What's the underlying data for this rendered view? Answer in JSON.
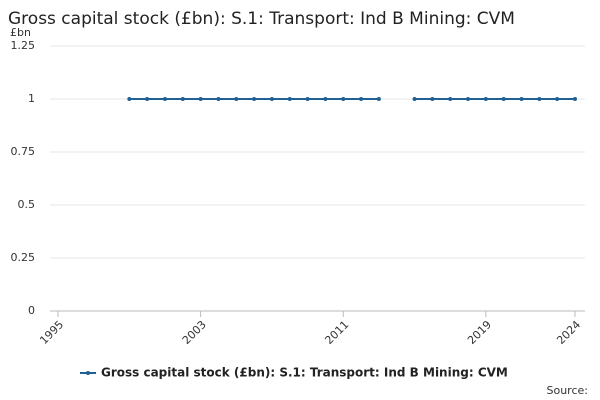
{
  "chart_data": {
    "type": "line",
    "title": "Gross capital stock (£bn): S.1: Transport: Ind B Mining: CVM",
    "y_unit": "£bn",
    "source": "Source:",
    "x": [
      1999,
      2000,
      2001,
      2002,
      2003,
      2004,
      2005,
      2006,
      2007,
      2008,
      2009,
      2010,
      2011,
      2012,
      2013,
      2014,
      2015,
      2016,
      2017,
      2018,
      2019,
      2020,
      2021,
      2022,
      2023,
      2024
    ],
    "series": [
      {
        "name": "Gross capital stock (£bn): S.1: Transport: Ind B Mining: CVM",
        "color": "#206095",
        "values": [
          1,
          1,
          1,
          1,
          1,
          1,
          1,
          1,
          1,
          1,
          1,
          1,
          1,
          1,
          1,
          null,
          1,
          1,
          1,
          1,
          1,
          1,
          1,
          1,
          1,
          1
        ]
      }
    ],
    "xlim": [
      1995,
      2024
    ],
    "xticks": [
      1995,
      2003,
      2011,
      2019,
      2024
    ],
    "ylim": [
      0,
      1.25
    ],
    "yticks": [
      0,
      0.25,
      0.5,
      0.75,
      1,
      1.25
    ],
    "grid": true,
    "legend": "bottom"
  }
}
